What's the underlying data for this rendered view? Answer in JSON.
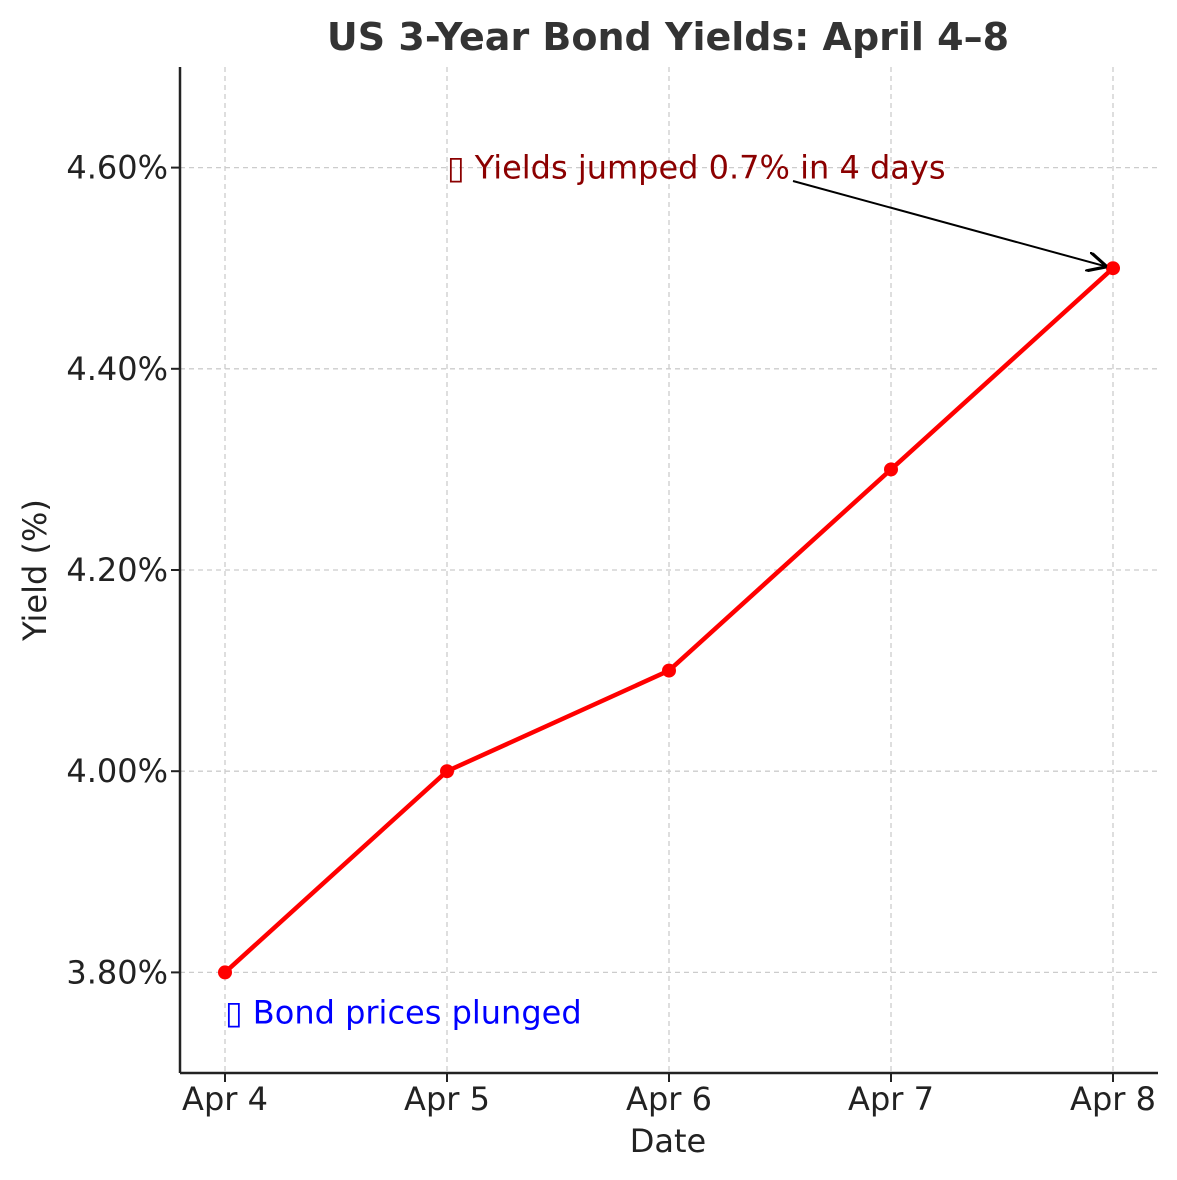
{
  "chart_data": {
    "type": "line",
    "title": "US 3-Year Bond Yields: April 4–8",
    "xlabel": "Date",
    "ylabel": "Yield (%)",
    "categories": [
      "Apr 4",
      "Apr 5",
      "Apr 6",
      "Apr 7",
      "Apr 8"
    ],
    "series": [
      {
        "values": [
          3.8,
          4.0,
          4.1,
          4.3,
          4.5
        ],
        "color": "#ff0000"
      }
    ],
    "ylim": [
      3.7,
      4.7
    ],
    "yticks": [
      3.8,
      4.0,
      4.2,
      4.4,
      4.6
    ],
    "ytick_labels": [
      "3.80%",
      "4.00%",
      "4.20%",
      "4.40%",
      "4.60%"
    ],
    "grid": true,
    "annotations": [
      {
        "text": "▯ Yields jumped 0.7% in 4 days",
        "color": "#8b0000",
        "x": "Apr 6",
        "y": 4.6,
        "arrow_to": {
          "x": "Apr 8",
          "y": 4.5
        }
      },
      {
        "text": "▯ Bond prices plunged",
        "color": "#0000ff",
        "x": "Apr 4",
        "y": 3.76
      }
    ]
  }
}
